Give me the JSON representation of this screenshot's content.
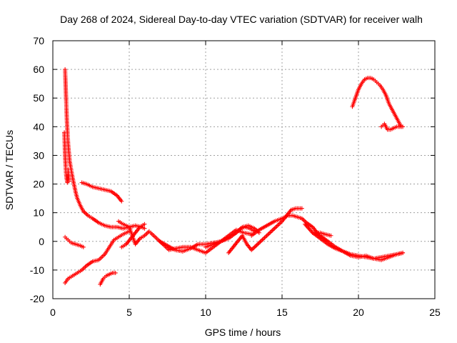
{
  "chart_data": {
    "type": "scatter",
    "title": "Day 268 of 2024, Sidereal Day-to-day VTEC variation (SDTVAR) for receiver walh",
    "xlabel": "GPS time / hours",
    "ylabel": "SDTVAR / TECUs",
    "xlim": [
      0,
      25
    ],
    "ylim": [
      -20,
      70
    ],
    "xticks": [
      "0",
      "5",
      "10",
      "15",
      "20",
      "25"
    ],
    "yticks": [
      "-20",
      "-10",
      "0",
      "10",
      "20",
      "30",
      "40",
      "50",
      "60",
      "70"
    ],
    "grid": true,
    "marker": "plus",
    "color": "#ff0000",
    "series": [
      {
        "name": "arc-spike",
        "x": [
          0.8,
          0.82,
          0.84,
          0.86,
          0.88,
          0.9,
          0.92,
          0.95,
          0.98,
          1.0,
          1.05,
          1.1,
          1.2,
          1.3,
          1.4,
          1.5,
          1.6,
          1.8,
          2.0,
          2.3,
          2.6,
          3.0,
          3.4,
          3.8,
          4.2,
          4.6,
          5.0,
          5.4,
          5.8,
          6.0
        ],
        "y": [
          60,
          57,
          54,
          51,
          48,
          45,
          42,
          39,
          36,
          34,
          31,
          28,
          25,
          22,
          19.5,
          17,
          15,
          12.5,
          10.5,
          9,
          8,
          6.5,
          5.5,
          5,
          5,
          4.5,
          5,
          5.5,
          5,
          4.5
        ]
      },
      {
        "name": "arc-spike-lower",
        "x": [
          0.75,
          0.78,
          0.8,
          0.83,
          0.86,
          0.9,
          0.95,
          1.0,
          1.05
        ],
        "y": [
          38,
          34,
          30,
          27,
          24,
          22,
          20.5,
          25,
          21
        ]
      },
      {
        "name": "arc-b",
        "x": [
          1.9,
          2.2,
          2.6,
          3.0,
          3.4,
          3.8,
          4.2,
          4.5
        ],
        "y": [
          20.5,
          20,
          19,
          18.5,
          18,
          17.5,
          16,
          14
        ]
      },
      {
        "name": "arc-c",
        "x": [
          0.8,
          1.0,
          1.3,
          1.6,
          1.9,
          2.2,
          2.6,
          3.0,
          3.4,
          3.7,
          4.0,
          4.3,
          4.6,
          5.0
        ],
        "y": [
          -14.5,
          -13,
          -12,
          -11,
          -10,
          -8.5,
          -7,
          -6.5,
          -4.5,
          -2,
          0.5,
          1.5,
          2.5,
          3.5
        ]
      },
      {
        "name": "arc-d",
        "x": [
          0.8,
          1.0,
          1.2,
          1.5,
          1.8,
          2.0
        ],
        "y": [
          1.5,
          0.5,
          -0.5,
          -1,
          -1.5,
          -2
        ]
      },
      {
        "name": "arc-e",
        "x": [
          3.1,
          3.3,
          3.5,
          3.7,
          3.9,
          4.1
        ],
        "y": [
          -15,
          -13,
          -12,
          -11.5,
          -11,
          -11
        ]
      },
      {
        "name": "arc-f",
        "x": [
          4.3,
          4.6,
          5.0,
          5.4,
          5.7,
          6.0,
          6.3
        ],
        "y": [
          7,
          6,
          5,
          -1,
          1,
          2,
          3.5
        ]
      },
      {
        "name": "arc-f2",
        "x": [
          4.5,
          4.8,
          5.1,
          5.4,
          5.7,
          6.0
        ],
        "y": [
          -2,
          -1,
          1,
          3,
          5,
          6
        ]
      },
      {
        "name": "arc-g",
        "x": [
          6.4,
          6.8,
          7.2,
          7.6,
          8.0,
          8.5,
          9.0,
          9.5,
          10.0,
          10.5,
          11.0,
          11.5,
          12.0,
          12.5,
          13.0
        ],
        "y": [
          3,
          1,
          -1,
          -3,
          -2.5,
          -2,
          -2,
          -3,
          -4,
          -2,
          0,
          2,
          4,
          3,
          2.5
        ]
      },
      {
        "name": "arc-h",
        "x": [
          7.0,
          7.5,
          8.0,
          8.5,
          9.0,
          9.5,
          10.0,
          10.5,
          11.0,
          11.5,
          12.0,
          12.4,
          12.8,
          13.2,
          13.5
        ],
        "y": [
          0,
          -1.5,
          -3,
          -3.5,
          -2.5,
          -1,
          -1,
          -0.5,
          0,
          1,
          3,
          5,
          5.5,
          4.5,
          3
        ]
      },
      {
        "name": "arc-i",
        "x": [
          10.0,
          10.5,
          11.0,
          11.5,
          12.0,
          12.3,
          12.6,
          12.9,
          13.2
        ],
        "y": [
          -2,
          -1,
          0,
          1.5,
          3,
          4.5,
          5,
          4.5,
          3.5
        ]
      },
      {
        "name": "arc-j",
        "x": [
          11.5,
          11.8,
          12.1,
          12.4,
          12.7,
          13.0,
          13.5,
          14.0,
          14.5,
          15.0,
          15.3,
          15.6,
          15.9,
          16.1,
          16.3
        ],
        "y": [
          -4,
          -2,
          0,
          2,
          -1,
          -3,
          -0.5,
          2,
          4.5,
          7,
          9,
          11,
          11.5,
          11.5,
          11.5
        ]
      },
      {
        "name": "arc-k",
        "x": [
          13.0,
          13.5,
          14.0,
          14.5,
          15.0,
          15.4,
          15.7,
          16.0,
          16.3,
          16.6,
          17.0,
          17.3,
          17.6,
          18.0
        ],
        "y": [
          2,
          4,
          5.5,
          7,
          8,
          9,
          9,
          8.5,
          8,
          6.5,
          5,
          3,
          1,
          0
        ]
      },
      {
        "name": "arc-l",
        "x": [
          16.5,
          17.0,
          17.5,
          18.0,
          18.5,
          19.0,
          19.5,
          20.0,
          20.5,
          21.0,
          21.5,
          22.0,
          22.5,
          22.9
        ],
        "y": [
          6,
          3,
          1,
          -1,
          -2.5,
          -3.5,
          -4.5,
          -5,
          -5.5,
          -6,
          -5.5,
          -5,
          -4.5,
          -4
        ]
      },
      {
        "name": "arc-m",
        "x": [
          17.0,
          17.5,
          18.0,
          18.5,
          19.0,
          19.5,
          20.0,
          20.5,
          21.0,
          21.5,
          22.0,
          22.5,
          22.9
        ],
        "y": [
          3,
          2,
          0,
          -2,
          -3.5,
          -5,
          -5.5,
          -5,
          -6,
          -6.5,
          -5.5,
          -4.5,
          -4
        ]
      },
      {
        "name": "arc-m2",
        "x": [
          17.2,
          17.5,
          17.8,
          18.2
        ],
        "y": [
          3,
          3,
          2.5,
          2
        ]
      },
      {
        "name": "arc-n",
        "x": [
          19.6,
          19.8,
          20.0,
          20.2,
          20.4,
          20.6,
          20.8,
          21.0,
          21.2,
          21.4,
          21.6,
          21.8,
          22.0,
          22.2,
          22.4,
          22.6,
          22.8
        ],
        "y": [
          47,
          50,
          53,
          55,
          56.5,
          57,
          57,
          56.5,
          55.5,
          54.5,
          53,
          51,
          48,
          46,
          44,
          42,
          40
        ]
      },
      {
        "name": "arc-o",
        "x": [
          21.5,
          21.7,
          21.9,
          22.1,
          22.3,
          22.5,
          22.7,
          22.9
        ],
        "y": [
          40,
          41,
          39,
          39,
          39.5,
          40,
          40,
          40
        ]
      }
    ]
  }
}
